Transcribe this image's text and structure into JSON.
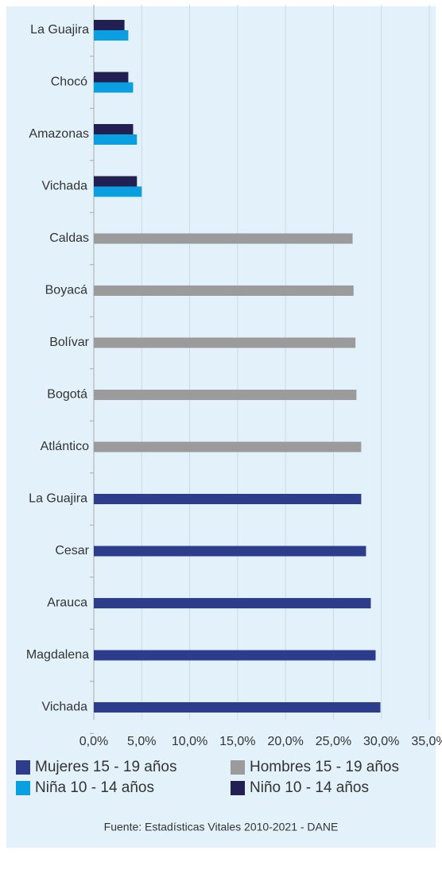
{
  "chart_data": {
    "type": "hbar",
    "categories": [
      "La Guajira",
      "Chocó",
      "Amazonas",
      "Vichada",
      "Caldas",
      "Boyacá",
      "Bolívar",
      "Bogotá",
      "Atlántico",
      "La Guajira",
      "Cesar",
      "Arauca",
      "Magdalena",
      "Vichada"
    ],
    "series": [
      {
        "name": "Mujeres 15 - 19 años",
        "color": "#2e3c8c",
        "values": [
          null,
          null,
          null,
          null,
          null,
          null,
          null,
          null,
          null,
          27.9,
          28.4,
          28.9,
          29.4,
          29.9
        ]
      },
      {
        "name": "Hombres 15 - 19 años",
        "color": "#9b9b9b",
        "values": [
          null,
          null,
          null,
          null,
          27.0,
          27.1,
          27.3,
          27.4,
          27.9,
          null,
          null,
          null,
          null,
          null
        ]
      },
      {
        "name": "Niña 10 - 14 años",
        "color": "#0a9fe0",
        "values": [
          3.6,
          4.1,
          4.5,
          5.0,
          null,
          null,
          null,
          null,
          null,
          null,
          null,
          null,
          null,
          null
        ]
      },
      {
        "name": "Niño 10 - 14 años",
        "color": "#221f52",
        "values": [
          3.2,
          3.6,
          4.1,
          4.5,
          null,
          null,
          null,
          null,
          null,
          null,
          null,
          null,
          null,
          null
        ]
      }
    ],
    "xlim": [
      0,
      35
    ],
    "xticks": [
      {
        "value": 0,
        "label": "0,0%"
      },
      {
        "value": 5,
        "label": "5,0%"
      },
      {
        "value": 10,
        "label": "10,0%"
      },
      {
        "value": 15,
        "label": "15,0%"
      },
      {
        "value": 20,
        "label": "20,0%"
      },
      {
        "value": 25,
        "label": "25,0%"
      },
      {
        "value": 30,
        "label": "30,0%"
      },
      {
        "value": 35,
        "label": "35,0%"
      }
    ],
    "xtick_colors": [
      "#333333",
      "#0aaee8",
      "#333333",
      "#0aaee8",
      "#333333",
      "#0aaee8",
      "#333333",
      "#0aaee8"
    ],
    "grid": true,
    "source": "Fuente: Estadísticas Vitales 2010-2021 - DANE"
  }
}
